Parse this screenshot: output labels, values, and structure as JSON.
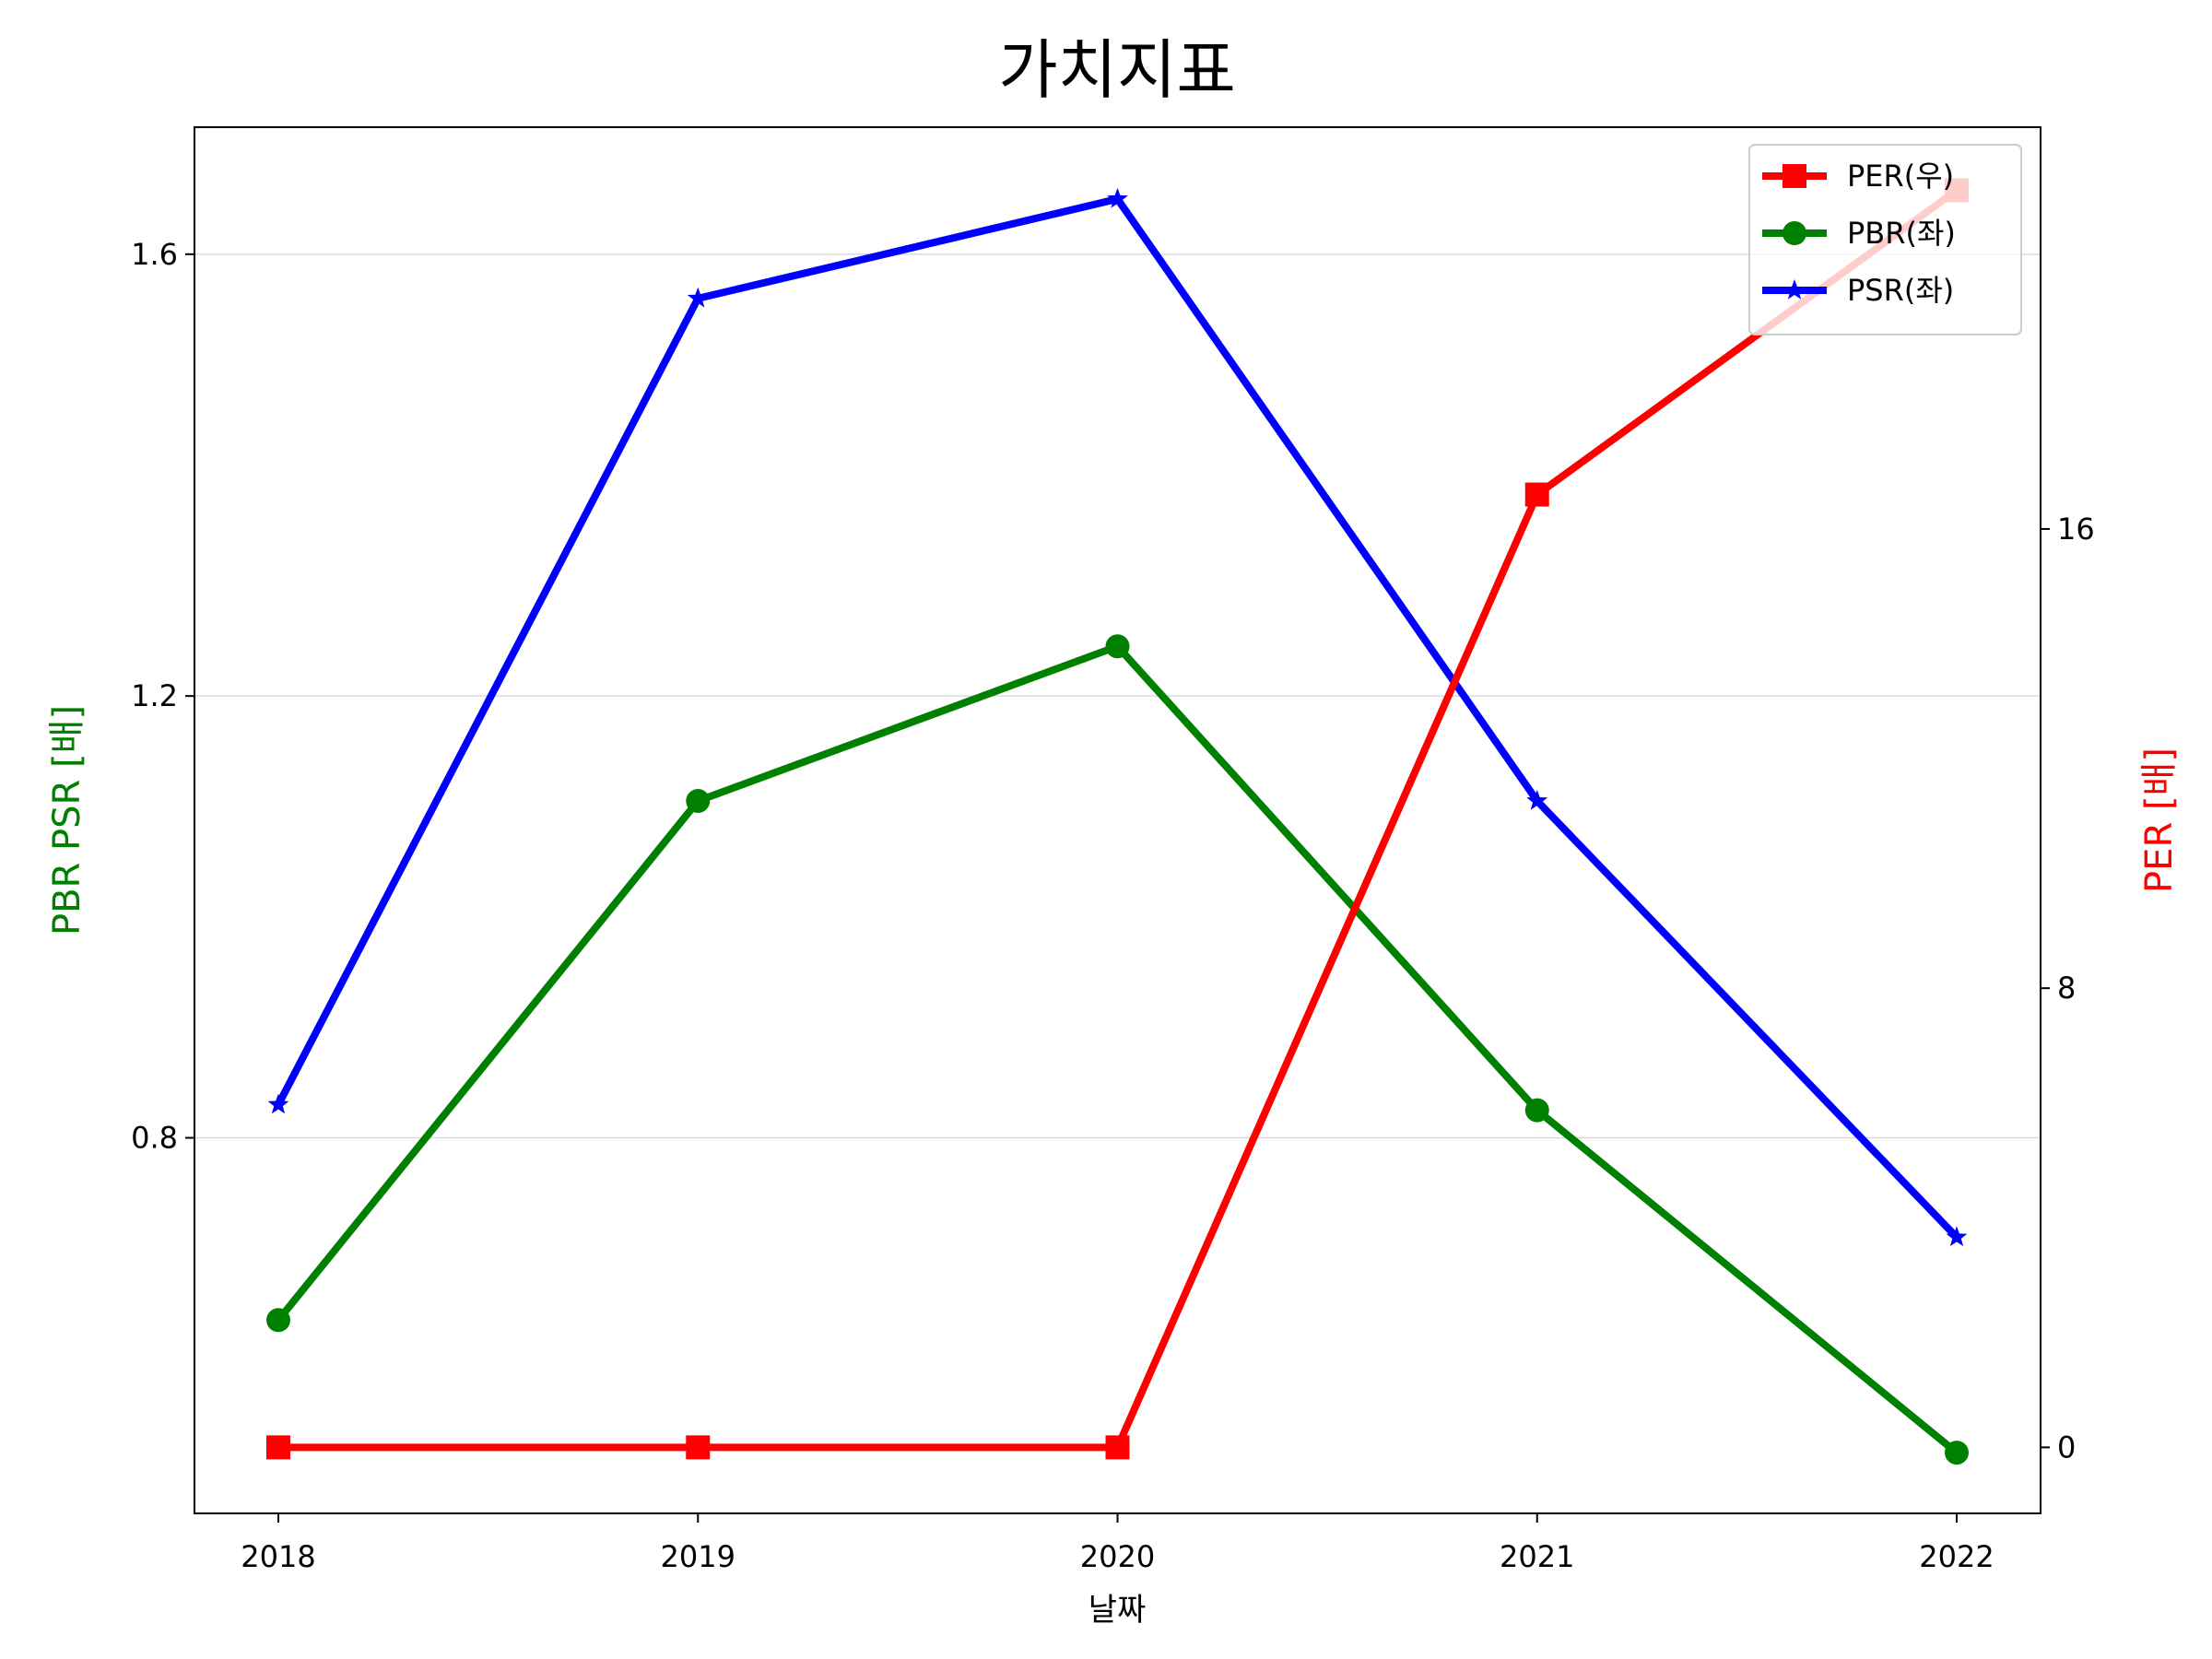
{
  "chart_data": {
    "type": "line",
    "title": "가치지표",
    "xlabel": "날짜",
    "ylabel_left": "PBR PSR [배]",
    "ylabel_right": "PER [배]",
    "ylabel_left_color": "#008000",
    "ylabel_right_color": "#ff0000",
    "categories": [
      "2018",
      "2019",
      "2020",
      "2021",
      "2022"
    ],
    "ylim_left": [
      0.46,
      1.715
    ],
    "ylim_right": [
      -1.15,
      23.0
    ],
    "yticks_left": [
      0.8,
      1.2,
      1.6
    ],
    "yticks_left_labels": [
      "0.8",
      "1.2",
      "1.6"
    ],
    "yticks_right": [
      0,
      8,
      16
    ],
    "yticks_right_labels": [
      "0",
      "8",
      "16"
    ],
    "grid": "horizontal (left axis)",
    "legend_position": "top-right",
    "series": [
      {
        "name": "PER(우)",
        "axis": "right",
        "color": "#ff0000",
        "marker": "square",
        "values": [
          0.0,
          0.0,
          0.0,
          16.6,
          21.9
        ]
      },
      {
        "name": "PBR(좌)",
        "axis": "left",
        "color": "#008000",
        "marker": "circle",
        "values": [
          0.635,
          1.105,
          1.245,
          0.825,
          0.515
        ]
      },
      {
        "name": "PSR(좌)",
        "axis": "left",
        "color": "#0000ff",
        "marker": "star",
        "values": [
          0.83,
          1.56,
          1.65,
          1.105,
          0.71
        ]
      }
    ]
  }
}
